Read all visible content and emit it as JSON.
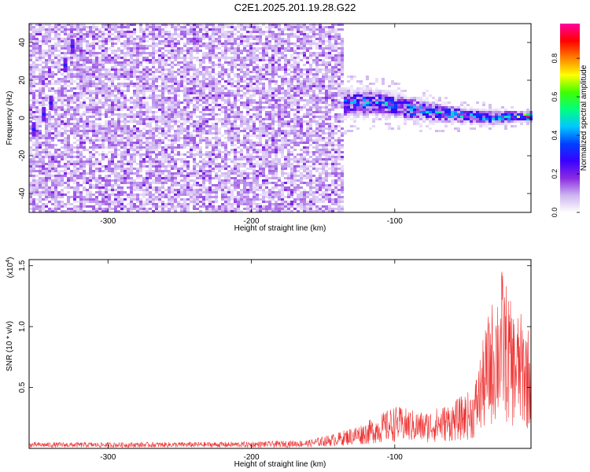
{
  "title": "C2E1.2025.201.19.28.G22",
  "chart_data": [
    {
      "type": "heatmap",
      "xlabel": "Height of straight line (km)",
      "ylabel": "Frequency (Hz)",
      "xlim": [
        -355,
        -5
      ],
      "ylim": [
        -50,
        50
      ],
      "xticks": [
        -300,
        -200,
        -100
      ],
      "yticks": [
        -40,
        -20,
        0,
        20,
        40
      ],
      "colorbar": {
        "label": "Normalized spectral amplitude",
        "range": [
          0,
          0.98
        ],
        "ticks": [
          0.0,
          0.2,
          0.4,
          0.6,
          0.8
        ],
        "tick_labels": [
          "0.0",
          "0.2",
          "0.4",
          "0.6",
          "0.8"
        ],
        "colors": [
          "#ffffff",
          "#cdb4f0",
          "#8a2be2",
          "#3a00ff",
          "#0040ff",
          "#00c8ff",
          "#00ff80",
          "#40ff00",
          "#ffff00",
          "#ff8000",
          "#ff0000",
          "#ff00a0"
        ]
      },
      "noise_region": {
        "x_range": [
          -355,
          -135
        ],
        "amplitude_range": [
          0.0,
          0.15
        ]
      },
      "signal_band": [
        {
          "x": -145,
          "center": 6,
          "halfwidth": 6,
          "peak": 0.35
        },
        {
          "x": -130,
          "center": 8,
          "halfwidth": 6,
          "peak": 0.42
        },
        {
          "x": -110,
          "center": 8,
          "halfwidth": 5,
          "peak": 0.45
        },
        {
          "x": -90,
          "center": 5,
          "halfwidth": 5,
          "peak": 0.5
        },
        {
          "x": -70,
          "center": 3,
          "halfwidth": 4,
          "peak": 0.45
        },
        {
          "x": -50,
          "center": 1,
          "halfwidth": 3,
          "peak": 0.5
        },
        {
          "x": -30,
          "center": 0,
          "halfwidth": 3,
          "peak": 0.45
        },
        {
          "x": -15,
          "center": 1,
          "halfwidth": 2,
          "peak": 0.65
        },
        {
          "x": -8,
          "center": 1,
          "halfwidth": 2,
          "peak": 0.95
        }
      ]
    },
    {
      "type": "line",
      "xlabel": "Height of straight line (km)",
      "ylabel": "SNR (10 * v/v)",
      "y_multiplier": "(x10",
      "y_multiplier_exp": "4",
      "xlim": [
        -355,
        -5
      ],
      "ylim": [
        0,
        15500
      ],
      "xticks": [
        -300,
        -200,
        -100
      ],
      "yticks": [
        5000,
        10000,
        15000
      ],
      "ytick_labels": [
        "0.5",
        "1.0",
        "1.5"
      ],
      "series": [
        {
          "color": "#ee3333",
          "envelope": [
            {
              "x": -355,
              "y": 500
            },
            {
              "x": -300,
              "y": 500
            },
            {
              "x": -200,
              "y": 550
            },
            {
              "x": -160,
              "y": 700
            },
            {
              "x": -140,
              "y": 1300
            },
            {
              "x": -120,
              "y": 2200
            },
            {
              "x": -100,
              "y": 3500
            },
            {
              "x": -80,
              "y": 3000
            },
            {
              "x": -60,
              "y": 3800
            },
            {
              "x": -45,
              "y": 5000
            },
            {
              "x": -35,
              "y": 11000
            },
            {
              "x": -25,
              "y": 15000
            },
            {
              "x": -18,
              "y": 11500
            },
            {
              "x": -10,
              "y": 11000
            },
            {
              "x": -5,
              "y": 9500
            }
          ]
        }
      ]
    }
  ]
}
